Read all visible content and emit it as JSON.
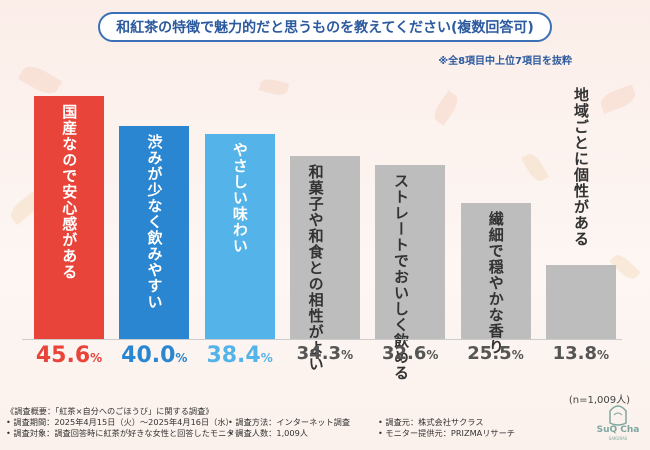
{
  "title": "和紅茶の特徴で魅力的だと思うものを教えてください(複数回答可)",
  "subtitle": "※全8項目中上位7項目を抜粋",
  "n_label": "(n=1,009人)",
  "colors": {
    "highlight1": "#e8443a",
    "highlight2": "#2a86d0",
    "highlight3": "#54b3e8",
    "gray": "#bdbdbd",
    "title": "#2c5a9e"
  },
  "chart_data": {
    "type": "bar",
    "categories": [
      "国産なので安心感がある",
      "渋みが少なく飲みやすい",
      "やさしい味わい",
      "和菓子や和食との相性がよい",
      "ストレートでおいしく飲める",
      "繊細で穏やかな香り",
      "地域ごとに個性がある"
    ],
    "label_lines": [
      [
        "国産なので安心感がある"
      ],
      [
        "渋みが少なく飲みやすい"
      ],
      [
        "やさしい味わい"
      ],
      [
        "和菓子や和食との",
        "相性がよい"
      ],
      [
        "ストレートで",
        "おいしく飲める"
      ],
      [
        "繊細で穏やかな香り"
      ],
      [
        "地域ごとに個性がある"
      ]
    ],
    "values": [
      45.6,
      40.0,
      38.4,
      34.3,
      32.6,
      25.5,
      13.8
    ],
    "value_labels": [
      "45.6",
      "40.0",
      "38.4",
      "34.3",
      "32.6",
      "25.5",
      "13.8"
    ],
    "unit": "%",
    "ylim": [
      0,
      45.6
    ],
    "grid": false
  },
  "footer": {
    "rows": [
      [
        "《調査概要：「紅茶×自分へのごほうび」に関する調査》",
        "",
        ""
      ],
      [
        "• 調査期間：2025年4月15日（火）〜2025年4月16日（水）",
        "• 調査方法：インターネット調査",
        "• 調査元：株式会社サクラス"
      ],
      [
        "• 調査対象：調査回答時に紅茶が好きな女性と回答したモニター",
        "• 調査人数：1,009人",
        "• モニター提供元：PRIZMAリサーチ"
      ]
    ]
  },
  "logo": {
    "name": "SuQ Cha",
    "sub": "SAKURAS"
  }
}
